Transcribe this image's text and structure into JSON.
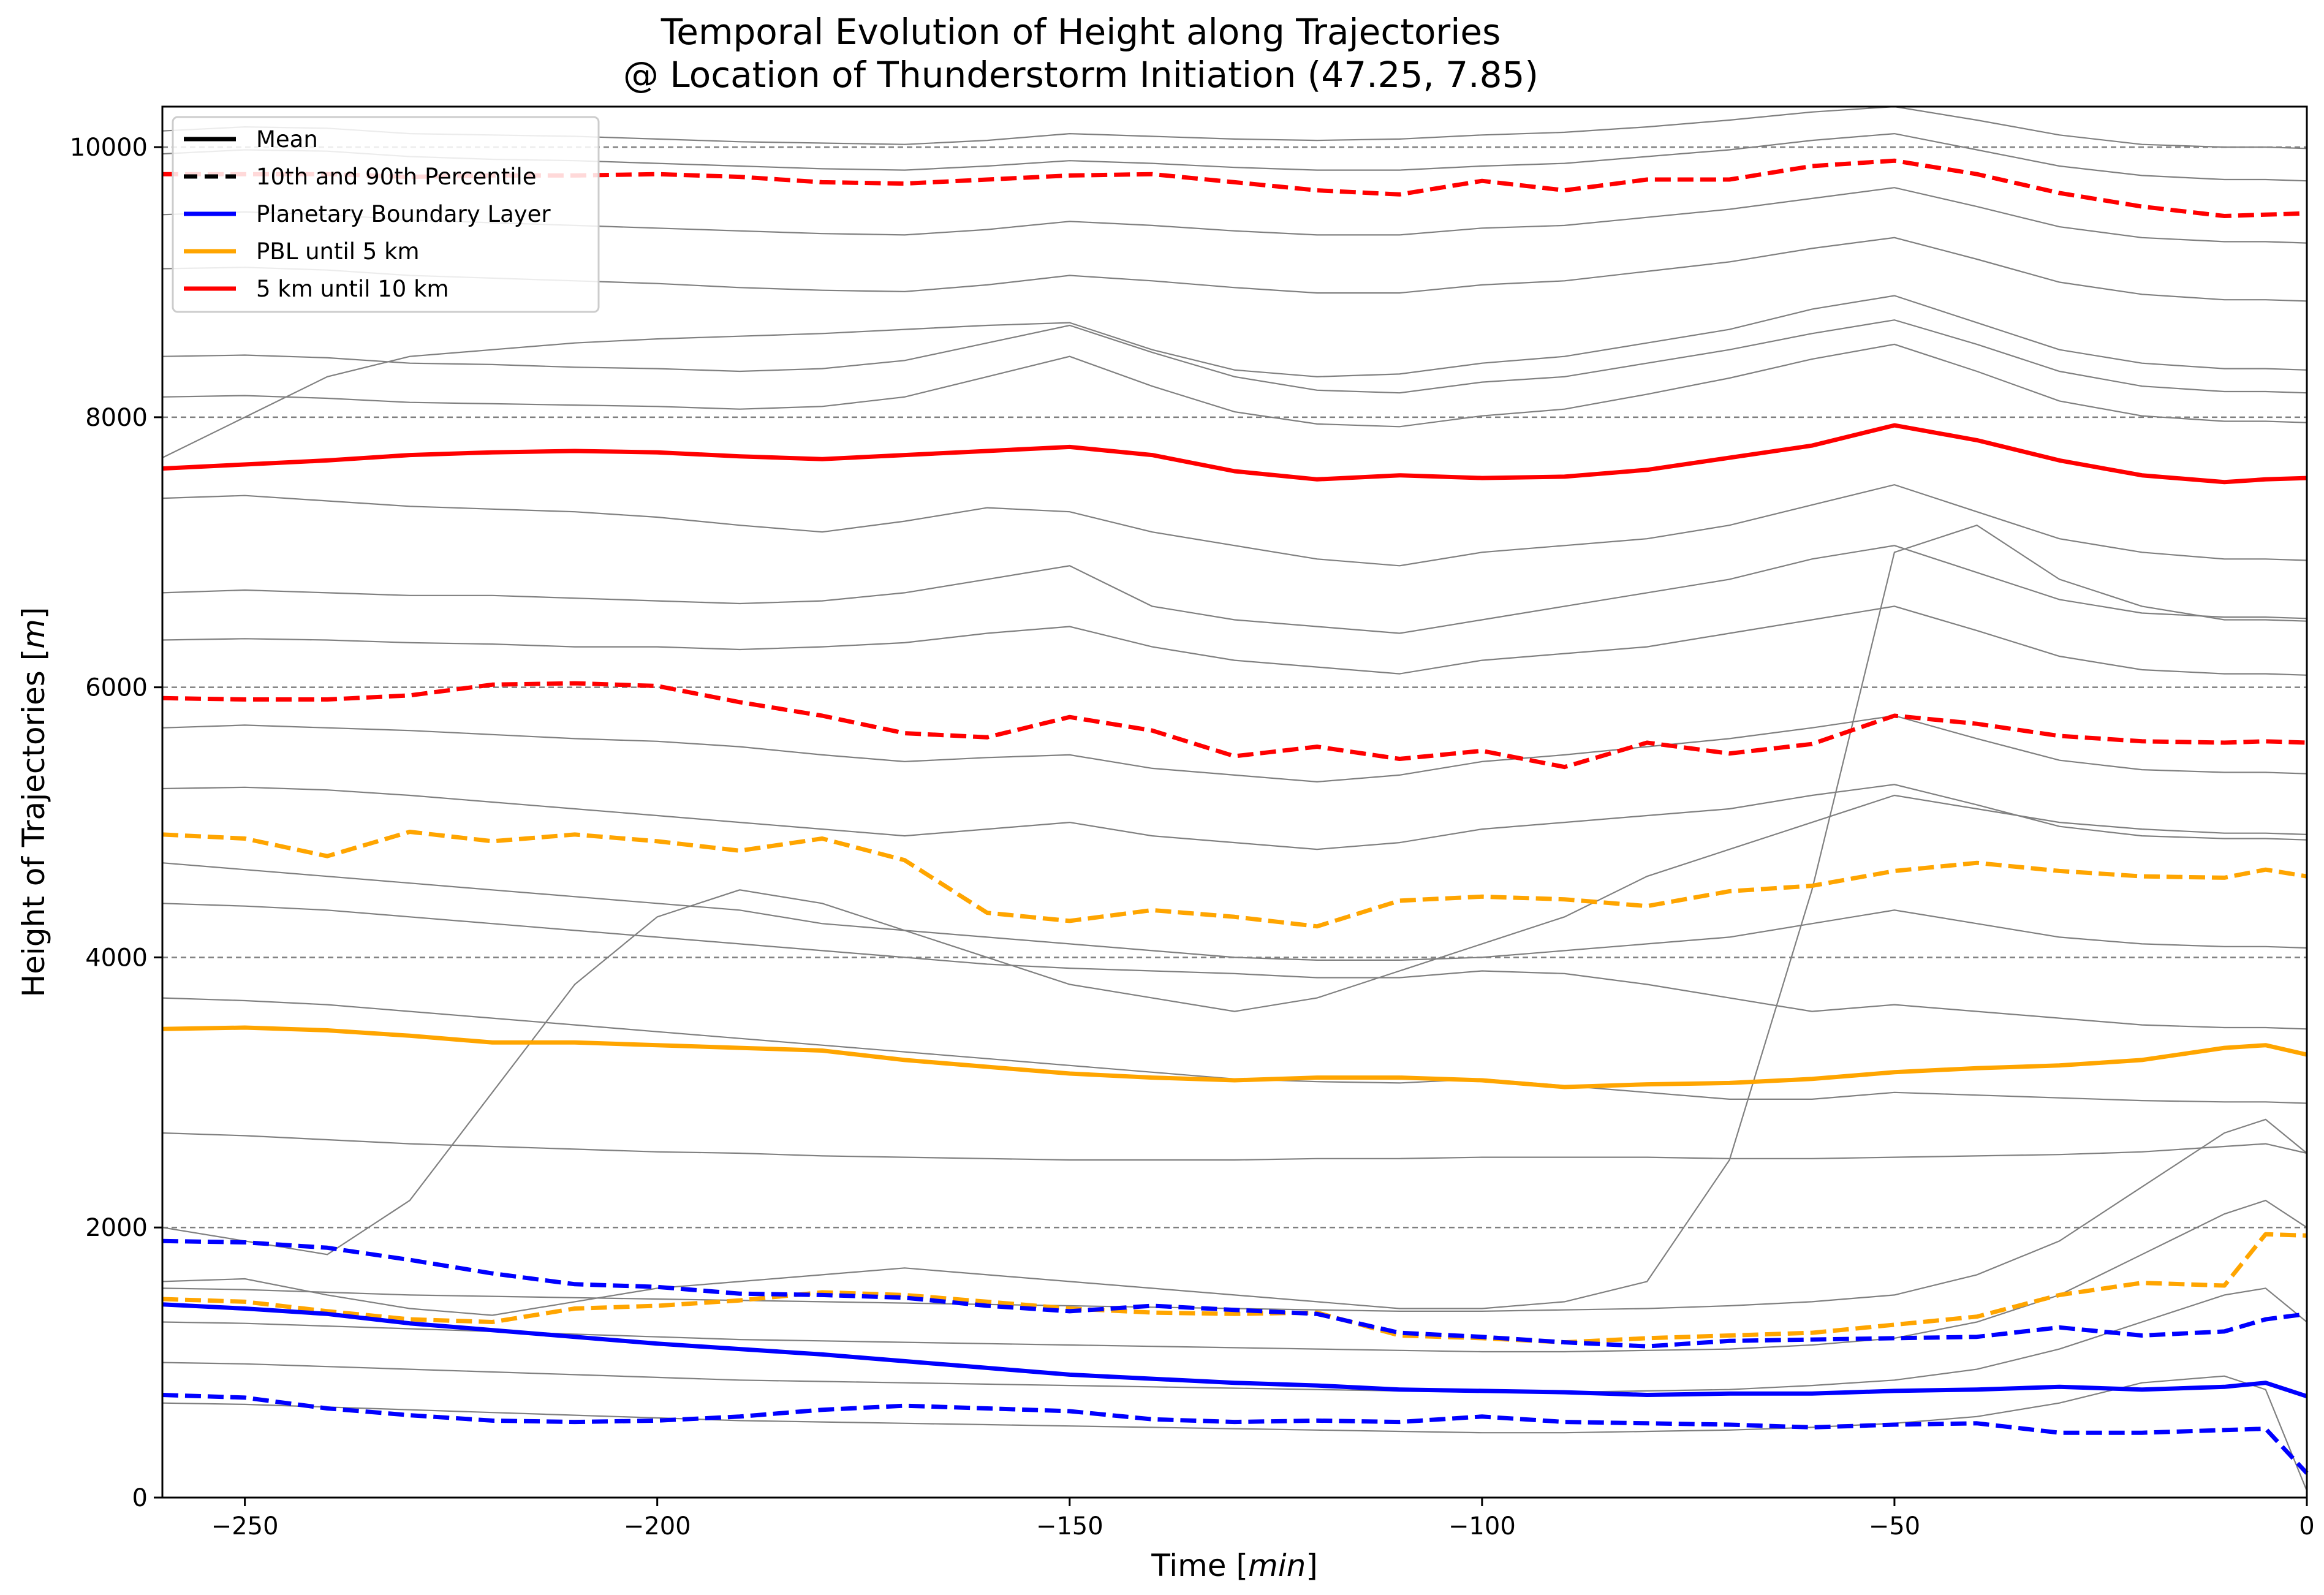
{
  "chart_data": {
    "type": "line",
    "title": "Temporal Evolution of Height along Trajectories",
    "subtitle": "@ Location of Thunderstorm Initiation (47.25, 7.85)",
    "xlabel_main": "Time ",
    "xlabel_unit": "min",
    "xlabel_close": "]",
    "xlabel_open": "[",
    "ylabel_main": "Height of Trajectories ",
    "ylabel_open": "[",
    "ylabel_unit": "m",
    "ylabel_close": "]",
    "xlim": [
      -260,
      0
    ],
    "ylim": [
      0,
      10300
    ],
    "xticks": [
      -250,
      -200,
      -150,
      -100,
      -50,
      0
    ],
    "xtick_labels": [
      "−250",
      "−200",
      "−150",
      "−100",
      "−50",
      "0"
    ],
    "yticks": [
      0,
      2000,
      4000,
      6000,
      8000,
      10000
    ],
    "ytick_labels": [
      "0",
      "2000",
      "4000",
      "6000",
      "8000",
      "10000"
    ],
    "reference_lines": [
      2000,
      4000,
      6000,
      8000,
      10000
    ],
    "legend_position": "top-left",
    "legend": [
      {
        "label": "Mean",
        "color": "#000000",
        "style": "solid"
      },
      {
        "label": "10th and 90th Percentile",
        "color": "#000000",
        "style": "dashed"
      },
      {
        "label": "Planetary Boundary Layer",
        "color": "#0000ff",
        "style": "solid"
      },
      {
        "label": "PBL until 5 km",
        "color": "#ffa500",
        "style": "solid"
      },
      {
        "label": "5 km until 10 km",
        "color": "#ff0000",
        "style": "solid"
      }
    ],
    "x": [
      -260,
      -250,
      -240,
      -230,
      -220,
      -210,
      -200,
      -190,
      -180,
      -170,
      -160,
      -150,
      -140,
      -130,
      -120,
      -110,
      -100,
      -90,
      -80,
      -70,
      -60,
      -50,
      -40,
      -30,
      -20,
      -10,
      -5,
      0
    ],
    "series": [
      {
        "group": "5 km until 10 km",
        "kind": "mean",
        "color": "#ff0000",
        "values": [
          7620,
          7650,
          7680,
          7720,
          7740,
          7750,
          7740,
          7710,
          7690,
          7720,
          7750,
          7780,
          7720,
          7600,
          7540,
          7570,
          7550,
          7560,
          7610,
          7700,
          7790,
          7940,
          7830,
          7680,
          7570,
          7520,
          7540,
          7550
        ]
      },
      {
        "group": "5 km until 10 km",
        "kind": "p90",
        "color": "#ff0000",
        "values": [
          9800,
          9800,
          9800,
          9780,
          9790,
          9790,
          9800,
          9780,
          9740,
          9730,
          9760,
          9790,
          9800,
          9740,
          9680,
          9650,
          9750,
          9680,
          9760,
          9760,
          9860,
          9900,
          9800,
          9660,
          9560,
          9490,
          9500,
          9510
        ]
      },
      {
        "group": "5 km until 10 km",
        "kind": "p10",
        "color": "#ff0000",
        "values": [
          5920,
          5910,
          5910,
          5940,
          6020,
          6030,
          6010,
          5890,
          5790,
          5660,
          5630,
          5780,
          5680,
          5490,
          5560,
          5470,
          5530,
          5410,
          5590,
          5510,
          5580,
          5790,
          5730,
          5640,
          5600,
          5590,
          5600,
          5590
        ]
      },
      {
        "group": "PBL until 5 km",
        "kind": "mean",
        "color": "#ffa500",
        "values": [
          3470,
          3480,
          3460,
          3420,
          3370,
          3370,
          3350,
          3330,
          3310,
          3240,
          3190,
          3140,
          3110,
          3090,
          3110,
          3110,
          3090,
          3040,
          3060,
          3070,
          3100,
          3150,
          3180,
          3200,
          3240,
          3330,
          3350,
          3280
        ]
      },
      {
        "group": "PBL until 5 km",
        "kind": "p90",
        "color": "#ffa500",
        "values": [
          4910,
          4880,
          4750,
          4930,
          4860,
          4910,
          4860,
          4790,
          4880,
          4720,
          4330,
          4270,
          4350,
          4300,
          4230,
          4420,
          4450,
          4430,
          4380,
          4490,
          4530,
          4640,
          4700,
          4640,
          4600,
          4590,
          4650,
          4600
        ]
      },
      {
        "group": "PBL until 5 km",
        "kind": "p10",
        "color": "#ffa500",
        "values": [
          1470,
          1450,
          1380,
          1320,
          1300,
          1400,
          1420,
          1460,
          1520,
          1500,
          1450,
          1400,
          1370,
          1360,
          1370,
          1200,
          1180,
          1150,
          1180,
          1200,
          1220,
          1280,
          1340,
          1500,
          1590,
          1570,
          1950,
          1940
        ]
      },
      {
        "group": "Planetary Boundary Layer",
        "kind": "mean",
        "color": "#0000ff",
        "values": [
          1430,
          1400,
          1360,
          1290,
          1240,
          1190,
          1140,
          1100,
          1060,
          1010,
          960,
          910,
          880,
          850,
          830,
          800,
          790,
          780,
          760,
          770,
          770,
          790,
          800,
          820,
          800,
          820,
          850,
          750
        ]
      },
      {
        "group": "Planetary Boundary Layer",
        "kind": "p90",
        "color": "#0000ff",
        "values": [
          1900,
          1890,
          1850,
          1760,
          1660,
          1580,
          1560,
          1510,
          1500,
          1480,
          1420,
          1380,
          1420,
          1390,
          1360,
          1220,
          1190,
          1150,
          1120,
          1160,
          1170,
          1180,
          1190,
          1260,
          1200,
          1230,
          1320,
          1360
        ]
      },
      {
        "group": "Planetary Boundary Layer",
        "kind": "p10",
        "color": "#0000ff",
        "values": [
          760,
          740,
          660,
          610,
          570,
          560,
          570,
          600,
          650,
          680,
          660,
          640,
          580,
          560,
          570,
          560,
          600,
          560,
          550,
          540,
          520,
          540,
          550,
          480,
          480,
          500,
          510,
          180
        ]
      }
    ],
    "background_trajectories": {
      "color": "#808080",
      "description_count": 80,
      "samples": [
        [
          10120,
          10150,
          10140,
          10100,
          10090,
          10080,
          10060,
          10040,
          10030,
          10020,
          10050,
          10100,
          10080,
          10060,
          10050,
          10060,
          10090,
          10110,
          10150,
          10200,
          10260,
          10300,
          10200,
          10090,
          10020,
          10000,
          10000,
          9990
        ],
        [
          9950,
          9980,
          9970,
          9930,
          9910,
          9900,
          9880,
          9860,
          9840,
          9830,
          9860,
          9900,
          9880,
          9850,
          9830,
          9830,
          9860,
          9880,
          9930,
          9980,
          10050,
          10100,
          9980,
          9860,
          9790,
          9760,
          9760,
          9750
        ],
        [
          9500,
          9520,
          9500,
          9460,
          9440,
          9420,
          9400,
          9380,
          9360,
          9350,
          9390,
          9450,
          9420,
          9380,
          9350,
          9350,
          9400,
          9420,
          9480,
          9540,
          9620,
          9700,
          9560,
          9410,
          9330,
          9300,
          9300,
          9290
        ],
        [
          9100,
          9110,
          9090,
          9050,
          9030,
          9010,
          8990,
          8960,
          8940,
          8930,
          8980,
          9050,
          9010,
          8960,
          8920,
          8920,
          8980,
          9010,
          9080,
          9150,
          9250,
          9330,
          9170,
          9000,
          8910,
          8870,
          8870,
          8860
        ],
        [
          8450,
          8460,
          8440,
          8400,
          8390,
          8370,
          8360,
          8340,
          8360,
          8420,
          8550,
          8680,
          8480,
          8300,
          8200,
          8180,
          8260,
          8300,
          8400,
          8500,
          8620,
          8720,
          8540,
          8340,
          8230,
          8190,
          8190,
          8180
        ],
        [
          8150,
          8160,
          8140,
          8110,
          8100,
          8090,
          8080,
          8060,
          8080,
          8150,
          8300,
          8450,
          8230,
          8040,
          7950,
          7930,
          8010,
          8060,
          8170,
          8290,
          8430,
          8540,
          8340,
          8120,
          8010,
          7970,
          7970,
          7960
        ],
        [
          7400,
          7420,
          7380,
          7340,
          7320,
          7300,
          7260,
          7200,
          7150,
          7230,
          7330,
          7300,
          7150,
          7050,
          6950,
          6900,
          7000,
          7050,
          7100,
          7200,
          7350,
          7500,
          7300,
          7100,
          7000,
          6950,
          6950,
          6940
        ],
        [
          6700,
          6720,
          6700,
          6680,
          6680,
          6660,
          6640,
          6620,
          6640,
          6700,
          6800,
          6900,
          6600,
          6500,
          6450,
          6400,
          6500,
          6600,
          6700,
          6800,
          6950,
          7050,
          6850,
          6650,
          6550,
          6520,
          6520,
          6510
        ],
        [
          6350,
          6360,
          6350,
          6330,
          6320,
          6300,
          6300,
          6280,
          6300,
          6330,
          6400,
          6450,
          6300,
          6200,
          6150,
          6100,
          6200,
          6250,
          6300,
          6400,
          6500,
          6600,
          6420,
          6230,
          6130,
          6100,
          6100,
          6090
        ],
        [
          5700,
          5720,
          5700,
          5680,
          5650,
          5620,
          5600,
          5560,
          5500,
          5450,
          5480,
          5500,
          5400,
          5350,
          5300,
          5350,
          5450,
          5500,
          5560,
          5620,
          5700,
          5790,
          5620,
          5460,
          5390,
          5370,
          5370,
          5360
        ],
        [
          5250,
          5260,
          5240,
          5200,
          5150,
          5100,
          5050,
          5000,
          4950,
          4900,
          4950,
          5000,
          4900,
          4850,
          4800,
          4850,
          4950,
          5000,
          5050,
          5100,
          5200,
          5280,
          5130,
          4970,
          4900,
          4880,
          4880,
          4870
        ],
        [
          4700,
          4650,
          4600,
          4550,
          4500,
          4450,
          4400,
          4350,
          4250,
          4200,
          4150,
          4100,
          4050,
          4000,
          3980,
          3980,
          4000,
          4050,
          4100,
          4150,
          4250,
          4350,
          4250,
          4150,
          4100,
          4080,
          4080,
          4070
        ],
        [
          4400,
          4380,
          4350,
          4300,
          4250,
          4200,
          4150,
          4100,
          4050,
          4000,
          3950,
          3920,
          3900,
          3880,
          3850,
          3850,
          3900,
          3880,
          3800,
          3700,
          3600,
          3650,
          3600,
          3550,
          3500,
          3480,
          3480,
          3470
        ],
        [
          3700,
          3680,
          3650,
          3600,
          3550,
          3500,
          3450,
          3400,
          3350,
          3300,
          3250,
          3200,
          3150,
          3100,
          3080,
          3070,
          3100,
          3050,
          3000,
          2950,
          2950,
          3000,
          2980,
          2960,
          2940,
          2930,
          2930,
          2920
        ],
        [
          2700,
          2680,
          2650,
          2620,
          2600,
          2580,
          2560,
          2550,
          2530,
          2520,
          2510,
          2500,
          2500,
          2500,
          2510,
          2510,
          2520,
          2520,
          2520,
          2510,
          2510,
          2520,
          2530,
          2540,
          2560,
          2600,
          2620,
          2550
        ],
        [
          1550,
          1540,
          1520,
          1500,
          1490,
          1480,
          1470,
          1460,
          1450,
          1440,
          1430,
          1420,
          1410,
          1400,
          1390,
          1380,
          1380,
          1390,
          1400,
          1420,
          1450,
          1500,
          1650,
          1900,
          2300,
          2700,
          2800,
          2550
        ],
        [
          1300,
          1290,
          1270,
          1250,
          1230,
          1210,
          1190,
          1170,
          1160,
          1150,
          1140,
          1130,
          1120,
          1110,
          1100,
          1090,
          1080,
          1080,
          1090,
          1100,
          1130,
          1180,
          1300,
          1500,
          1800,
          2100,
          2200,
          2000
        ],
        [
          1000,
          990,
          970,
          950,
          930,
          910,
          890,
          870,
          860,
          850,
          840,
          830,
          820,
          810,
          800,
          790,
          780,
          780,
          790,
          800,
          830,
          870,
          950,
          1100,
          1300,
          1500,
          1550,
          1300
        ],
        [
          700,
          690,
          670,
          650,
          630,
          610,
          590,
          570,
          560,
          550,
          540,
          530,
          520,
          510,
          500,
          490,
          480,
          480,
          490,
          500,
          520,
          550,
          600,
          700,
          850,
          900,
          800,
          50
        ],
        [
          1600,
          1620,
          1500,
          1400,
          1350,
          1450,
          1550,
          1600,
          1650,
          1700,
          1650,
          1600,
          1550,
          1500,
          1450,
          1400,
          1400,
          1450,
          1600,
          2500,
          4500,
          7000,
          7200,
          6800,
          6600,
          6500,
          6500,
          6490
        ],
        [
          2000,
          1900,
          1800,
          2200,
          3000,
          3800,
          4300,
          4500,
          4400,
          4200,
          4000,
          3800,
          3700,
          3600,
          3700,
          3900,
          4100,
          4300,
          4600,
          4800,
          5000,
          5200,
          5100,
          5000,
          4950,
          4920,
          4920,
          4910
        ],
        [
          7700,
          8000,
          8300,
          8450,
          8500,
          8550,
          8580,
          8600,
          8620,
          8650,
          8680,
          8700,
          8500,
          8350,
          8300,
          8320,
          8400,
          8450,
          8550,
          8650,
          8800,
          8900,
          8700,
          8500,
          8400,
          8360,
          8360,
          8350
        ]
      ]
    }
  }
}
